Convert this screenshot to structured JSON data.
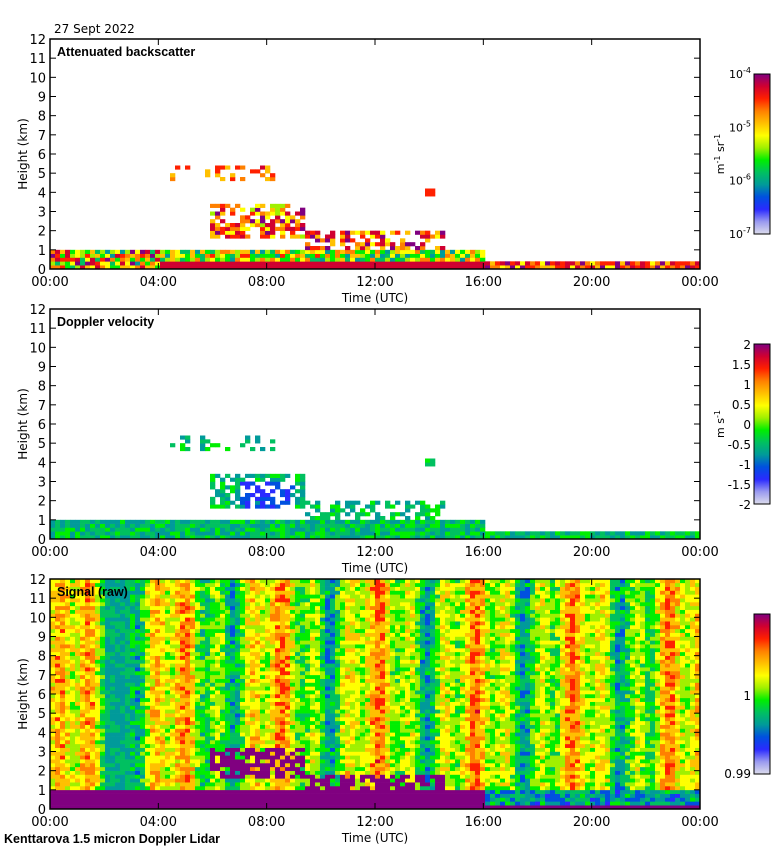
{
  "header": {
    "date": "27 Sept 2022"
  },
  "footer": {
    "instrument": "Kenttarova 1.5 micron Doppler Lidar"
  },
  "chart_data": [
    {
      "type": "heatmap",
      "title": "Attenuated backscatter",
      "xlabel": "Time (UTC)",
      "ylabel": "Height (km)",
      "xlim": [
        0,
        24
      ],
      "ylim": [
        0,
        12
      ],
      "xticks": [
        "00:00",
        "04:00",
        "08:00",
        "12:00",
        "16:00",
        "20:00",
        "00:00"
      ],
      "yticks": [
        "0",
        "1",
        "2",
        "3",
        "4",
        "5",
        "6",
        "7",
        "8",
        "9",
        "10",
        "11",
        "12"
      ],
      "colorbar": {
        "label_base": "m",
        "label_exp1": "-1",
        "label_mid": " sr",
        "label_exp2": "-1",
        "scale": "log",
        "ticks": [
          {
            "base": "10",
            "exp": "-4"
          },
          {
            "base": "10",
            "exp": "-5"
          },
          {
            "base": "10",
            "exp": "-6"
          },
          {
            "base": "10",
            "exp": "-7"
          }
        ],
        "range": [
          1e-07,
          0.0001
        ]
      },
      "features": [
        {
          "t0": 0,
          "t1": 16.0,
          "h0": 0,
          "h1": 0.9,
          "level": "high",
          "desc": "boundary layer"
        },
        {
          "t0": 16.0,
          "t1": 24,
          "h0": 0,
          "h1": 0.35,
          "level": "high",
          "desc": "surface layer"
        },
        {
          "t0": 6.0,
          "t1": 9.5,
          "h0": 1.5,
          "h1": 3.5,
          "level": "high",
          "desc": "cloud"
        },
        {
          "t0": 9.5,
          "t1": 14.5,
          "h0": 1.0,
          "h1": 2.0,
          "level": "high",
          "desc": "descending cloud"
        },
        {
          "t0": 4.5,
          "t1": 8.5,
          "h0": 4.5,
          "h1": 5.5,
          "level": "mid",
          "desc": "upper layer"
        }
      ]
    },
    {
      "type": "heatmap",
      "title": "Doppler velocity",
      "xlabel": "Time (UTC)",
      "ylabel": "Height (km)",
      "xlim": [
        0,
        24
      ],
      "ylim": [
        0,
        12
      ],
      "xticks": [
        "00:00",
        "04:00",
        "08:00",
        "12:00",
        "16:00",
        "20:00",
        "00:00"
      ],
      "yticks": [
        "0",
        "1",
        "2",
        "3",
        "4",
        "5",
        "6",
        "7",
        "8",
        "9",
        "10",
        "11",
        "12"
      ],
      "colorbar": {
        "label_base": "m s",
        "label_exp1": "-1",
        "scale": "linear",
        "ticks": [
          "2",
          "1.5",
          "1",
          "0.5",
          "0",
          "-0.5",
          "-1",
          "-1.5",
          "-2"
        ],
        "range": [
          -2,
          2
        ]
      }
    },
    {
      "type": "heatmap",
      "title": "Signal (raw)",
      "xlabel": "Time (UTC)",
      "ylabel": "Height (km)",
      "xlim": [
        0,
        24
      ],
      "ylim": [
        0,
        12
      ],
      "xticks": [
        "00:00",
        "04:00",
        "08:00",
        "12:00",
        "16:00",
        "20:00",
        "00:00"
      ],
      "yticks": [
        "0",
        "1",
        "2",
        "3",
        "4",
        "5",
        "6",
        "7",
        "8",
        "9",
        "10",
        "11",
        "12"
      ],
      "colorbar": {
        "scale": "linear",
        "ticks": [
          "1",
          "0.99"
        ],
        "range": [
          0.99,
          1.01
        ]
      }
    }
  ],
  "colors": {
    "colormap": [
      "#dcdcec",
      "#9a9af0",
      "#2a2aff",
      "#0050e0",
      "#009a9a",
      "#00c060",
      "#00ee00",
      "#a0f000",
      "#ffff00",
      "#ffc000",
      "#ff8000",
      "#ff2000",
      "#d00030",
      "#800080"
    ]
  }
}
